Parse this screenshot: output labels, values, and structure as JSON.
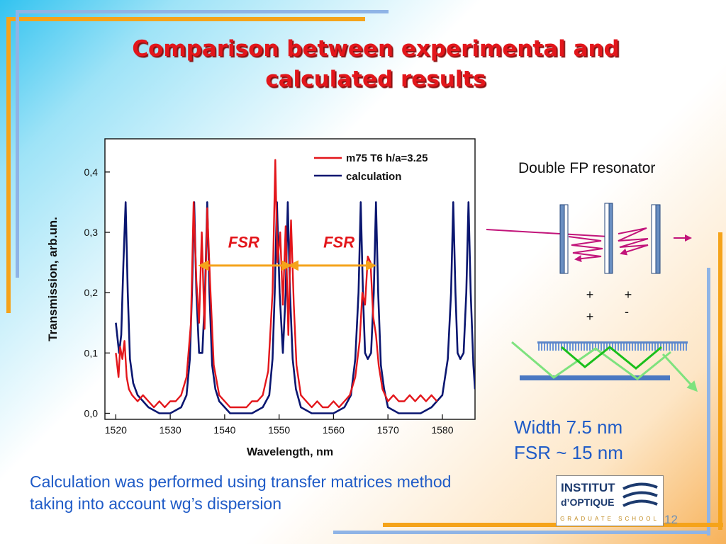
{
  "slide": {
    "title": "Comparison between experimental and\ncalculated results",
    "resonator_caption": "Double FP resonator",
    "result_width": "Width 7.5 nm",
    "result_fsr": "FSR ~ 15 nm",
    "note": "Calculation was performed using transfer matrices method taking into account wg’s dispersion",
    "page_number": "12",
    "charge_labels": [
      "+",
      "+",
      "+",
      "-"
    ],
    "colors": {
      "title": "#e3161b",
      "text_blue": "#1f5bc7",
      "accent_orange": "#f5a31a",
      "frame_blue": "#8fb4e6"
    }
  },
  "logo": {
    "line1": "INSTITUT",
    "line2": "d’OPTIQUE",
    "line3": "GRADUATE SCHOOL"
  },
  "chart_data": {
    "type": "line",
    "xlabel": "Wavelength, nm",
    "ylabel": "Transmission, arb.un.",
    "xlim": [
      1518,
      1586
    ],
    "ylim": [
      -0.01,
      0.455
    ],
    "xticks": [
      1520,
      1530,
      1540,
      1550,
      1560,
      1570,
      1580
    ],
    "xtick_labels": [
      "1520",
      "1530",
      "1540",
      "1550",
      "1560",
      "1570",
      "1580"
    ],
    "yticks": [
      0.0,
      0.1,
      0.2,
      0.3,
      0.4
    ],
    "ytick_labels": [
      "0,0",
      "0,1",
      "0,2",
      "0,3",
      "0,4"
    ],
    "legend_position": "top-right",
    "annotations": [
      {
        "text": "FSR",
        "x": 1543.5,
        "y": 0.275
      },
      {
        "text": "FSR",
        "x": 1561.0,
        "y": 0.275
      }
    ],
    "fsr_arrows": [
      {
        "x1": 1535.5,
        "x2": 1552.0,
        "y": 0.245
      },
      {
        "x1": 1552.0,
        "x2": 1567.5,
        "y": 0.245
      }
    ],
    "series": [
      {
        "name": "m75 T6 h/a=3.25",
        "color": "#e3161b",
        "x": [
          1520.0,
          1520.5,
          1520.8,
          1521.2,
          1521.6,
          1522.0,
          1522.4,
          1523.0,
          1524.0,
          1525.0,
          1526.0,
          1527.0,
          1528.0,
          1529.0,
          1530.0,
          1531.0,
          1532.0,
          1533.0,
          1533.8,
          1534.3,
          1534.8,
          1535.3,
          1535.8,
          1536.3,
          1536.8,
          1537.3,
          1538.0,
          1539.0,
          1540.0,
          1541.0,
          1542.0,
          1543.0,
          1544.0,
          1545.0,
          1546.0,
          1547.0,
          1548.0,
          1548.8,
          1549.3,
          1549.7,
          1550.2,
          1550.7,
          1551.2,
          1551.7,
          1552.2,
          1552.7,
          1553.2,
          1554.0,
          1555.0,
          1556.0,
          1557.0,
          1558.0,
          1559.0,
          1560.0,
          1561.0,
          1562.0,
          1563.0,
          1564.0,
          1564.8,
          1565.3,
          1565.8,
          1566.3,
          1566.8,
          1567.3,
          1567.8,
          1568.3,
          1569.0,
          1570.0,
          1571.0,
          1572.0,
          1573.0,
          1574.0,
          1575.0,
          1576.0,
          1577.0,
          1578.0,
          1579.0
        ],
        "values": [
          0.1,
          0.06,
          0.11,
          0.09,
          0.12,
          0.06,
          0.04,
          0.03,
          0.02,
          0.03,
          0.02,
          0.01,
          0.02,
          0.01,
          0.02,
          0.02,
          0.03,
          0.06,
          0.15,
          0.35,
          0.22,
          0.15,
          0.3,
          0.14,
          0.34,
          0.22,
          0.08,
          0.03,
          0.02,
          0.01,
          0.01,
          0.01,
          0.01,
          0.02,
          0.02,
          0.03,
          0.07,
          0.2,
          0.42,
          0.25,
          0.3,
          0.18,
          0.31,
          0.13,
          0.32,
          0.18,
          0.08,
          0.03,
          0.02,
          0.01,
          0.02,
          0.01,
          0.01,
          0.02,
          0.01,
          0.02,
          0.03,
          0.06,
          0.12,
          0.2,
          0.18,
          0.26,
          0.25,
          0.16,
          0.13,
          0.08,
          0.04,
          0.02,
          0.03,
          0.02,
          0.02,
          0.03,
          0.02,
          0.03,
          0.02,
          0.03,
          0.02
        ]
      },
      {
        "name": "calculation",
        "color": "#0a1670",
        "x": [
          1520.0,
          1520.6,
          1521.0,
          1521.4,
          1521.8,
          1522.2,
          1522.6,
          1523.2,
          1524.0,
          1526.0,
          1528.0,
          1530.0,
          1532.0,
          1533.0,
          1533.6,
          1534.0,
          1534.4,
          1534.8,
          1535.3,
          1535.9,
          1536.4,
          1536.8,
          1537.2,
          1537.7,
          1538.3,
          1539.0,
          1541.0,
          1543.0,
          1545.0,
          1547.0,
          1548.2,
          1548.8,
          1549.2,
          1549.6,
          1550.1,
          1550.7,
          1551.2,
          1551.6,
          1552.0,
          1552.5,
          1553.1,
          1554.0,
          1556.0,
          1558.0,
          1560.0,
          1562.0,
          1563.2,
          1564.0,
          1564.6,
          1565.0,
          1565.4,
          1565.8,
          1566.3,
          1566.9,
          1567.4,
          1567.8,
          1568.2,
          1568.7,
          1569.3,
          1570.0,
          1572.0,
          1574.0,
          1576.0,
          1578.0,
          1580.0,
          1581.0,
          1581.6,
          1582.0,
          1582.4,
          1582.8,
          1583.3,
          1583.9,
          1584.4,
          1584.8,
          1585.2,
          1585.7,
          1586.0
        ],
        "values": [
          0.15,
          0.1,
          0.13,
          0.25,
          0.35,
          0.2,
          0.09,
          0.05,
          0.03,
          0.01,
          0.0,
          0.0,
          0.01,
          0.03,
          0.09,
          0.2,
          0.35,
          0.2,
          0.1,
          0.1,
          0.2,
          0.35,
          0.2,
          0.08,
          0.04,
          0.02,
          0.0,
          0.0,
          0.0,
          0.01,
          0.03,
          0.09,
          0.2,
          0.35,
          0.2,
          0.1,
          0.2,
          0.35,
          0.2,
          0.09,
          0.04,
          0.01,
          0.0,
          0.0,
          0.0,
          0.01,
          0.03,
          0.09,
          0.2,
          0.35,
          0.2,
          0.1,
          0.09,
          0.1,
          0.2,
          0.35,
          0.2,
          0.08,
          0.04,
          0.01,
          0.0,
          0.0,
          0.0,
          0.01,
          0.03,
          0.09,
          0.2,
          0.35,
          0.2,
          0.1,
          0.09,
          0.1,
          0.2,
          0.35,
          0.2,
          0.08,
          0.04
        ]
      }
    ]
  }
}
